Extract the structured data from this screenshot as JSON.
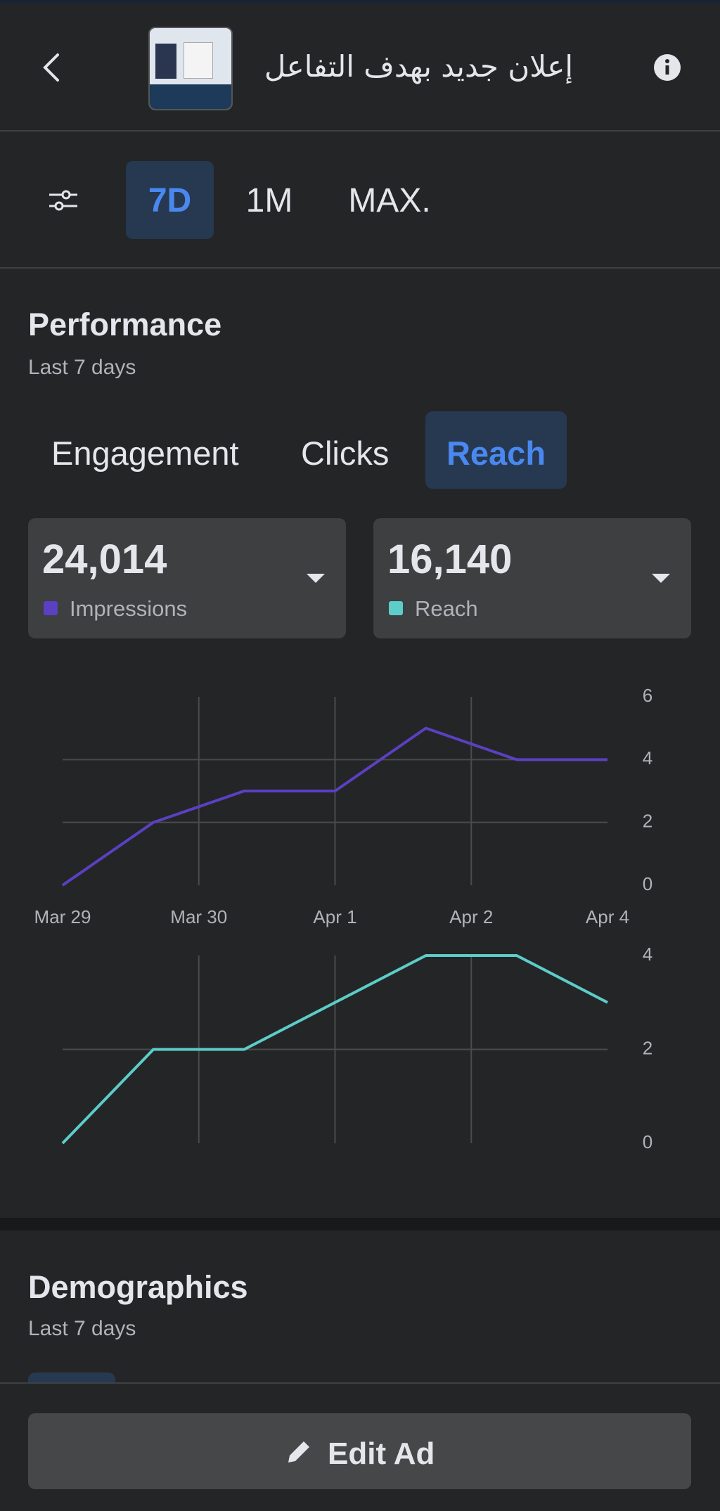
{
  "header": {
    "title": "إعلان جديد بهدف التفاعل"
  },
  "ranges": [
    "7D",
    "1M",
    "MAX."
  ],
  "performance": {
    "title": "Performance",
    "subtitle": "Last 7 days",
    "tabs": [
      "Engagement",
      "Clicks",
      "Reach"
    ],
    "metrics": [
      {
        "value": "24,014",
        "label": "Impressions",
        "color": "#5b40c2"
      },
      {
        "value": "16,140",
        "label": "Reach",
        "color": "#5ccdc8"
      }
    ]
  },
  "chart_data": [
    {
      "type": "line",
      "values": [
        0,
        2,
        3,
        3,
        5,
        4,
        4
      ],
      "color": "#5b40c2",
      "ylim": [
        0,
        6
      ],
      "yticks": [
        0,
        2,
        4,
        6
      ],
      "grid": true,
      "x_labels": [
        "Mar 29",
        "Mar 30",
        "Apr 1",
        "Apr 2",
        "Apr 4"
      ]
    },
    {
      "type": "line",
      "values": [
        0,
        2,
        2,
        3,
        4,
        4,
        3
      ],
      "color": "#5ccdc8",
      "ylim": [
        0,
        4
      ],
      "yticks": [
        0,
        2,
        4
      ],
      "grid": true
    }
  ],
  "demographics": {
    "title": "Demographics",
    "subtitle": "Last 7 days"
  },
  "button": {
    "label": "Edit Ad"
  }
}
